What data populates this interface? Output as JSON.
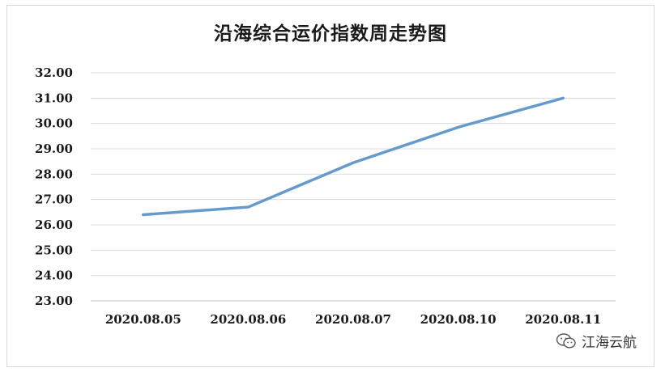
{
  "chart_data": {
    "type": "line",
    "title": "沿海综合运价指数周走势图",
    "categories": [
      "2020.08.05",
      "2020.08.06",
      "2020.08.07",
      "2020.08.10",
      "2020.08.11"
    ],
    "series": [
      {
        "values": [
          26.4,
          26.7,
          28.45,
          29.85,
          31.0
        ],
        "color": "#6699cc"
      }
    ],
    "y_ticks": [
      "23.00",
      "24.00",
      "25.00",
      "26.00",
      "27.00",
      "28.00",
      "29.00",
      "30.00",
      "31.00",
      "32.00"
    ],
    "ylim": [
      23,
      32
    ],
    "grid": true,
    "legend": "none"
  },
  "watermark": {
    "text": "江海云航",
    "icon": "wechat-icon"
  }
}
